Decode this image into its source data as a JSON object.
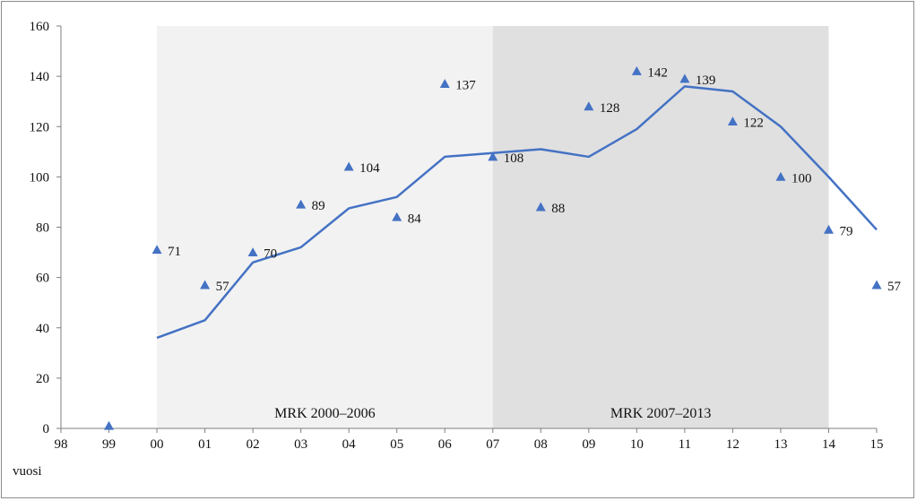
{
  "chart_data": {
    "type": "scatter",
    "xlabel": "vuosi",
    "x_ticks": [
      "98",
      "99",
      "00",
      "01",
      "02",
      "03",
      "04",
      "05",
      "06",
      "07",
      "08",
      "09",
      "10",
      "11",
      "12",
      "13",
      "14",
      "15"
    ],
    "ylim": [
      0,
      160
    ],
    "y_ticks": [
      0,
      20,
      40,
      60,
      80,
      100,
      120,
      140,
      160
    ],
    "bands": [
      {
        "label": "MRK 2000–2006",
        "from": "00",
        "to": "07",
        "color": "#f2f2f2"
      },
      {
        "label": "MRK 2007–2013",
        "from": "07",
        "to": "14",
        "color": "#e0e0e0"
      }
    ],
    "points": {
      "x": [
        "99",
        "00",
        "01",
        "02",
        "03",
        "04",
        "05",
        "06",
        "07",
        "08",
        "09",
        "10",
        "11",
        "12",
        "13",
        "14",
        "15"
      ],
      "values": [
        1,
        71,
        57,
        70,
        89,
        104,
        84,
        137,
        108,
        88,
        128,
        142,
        139,
        122,
        100,
        79,
        57
      ],
      "labels": [
        "",
        "71",
        "57",
        "70",
        "89",
        "104",
        "84",
        "137",
        "108",
        "88",
        "128",
        "142",
        "139",
        "122",
        "100",
        "79",
        "57"
      ],
      "color": "#4472c4",
      "marker": "triangle"
    },
    "trend": {
      "x": [
        "00",
        "01",
        "02",
        "03",
        "04",
        "05",
        "06",
        "07",
        "08",
        "09",
        "10",
        "11",
        "12",
        "13",
        "14",
        "15"
      ],
      "values": [
        36,
        43,
        66,
        72,
        87.5,
        92,
        108,
        109.5,
        111,
        108,
        119,
        136,
        134,
        120,
        100,
        79
      ],
      "color": "#4472c4"
    },
    "grid": false,
    "legend": "none"
  }
}
